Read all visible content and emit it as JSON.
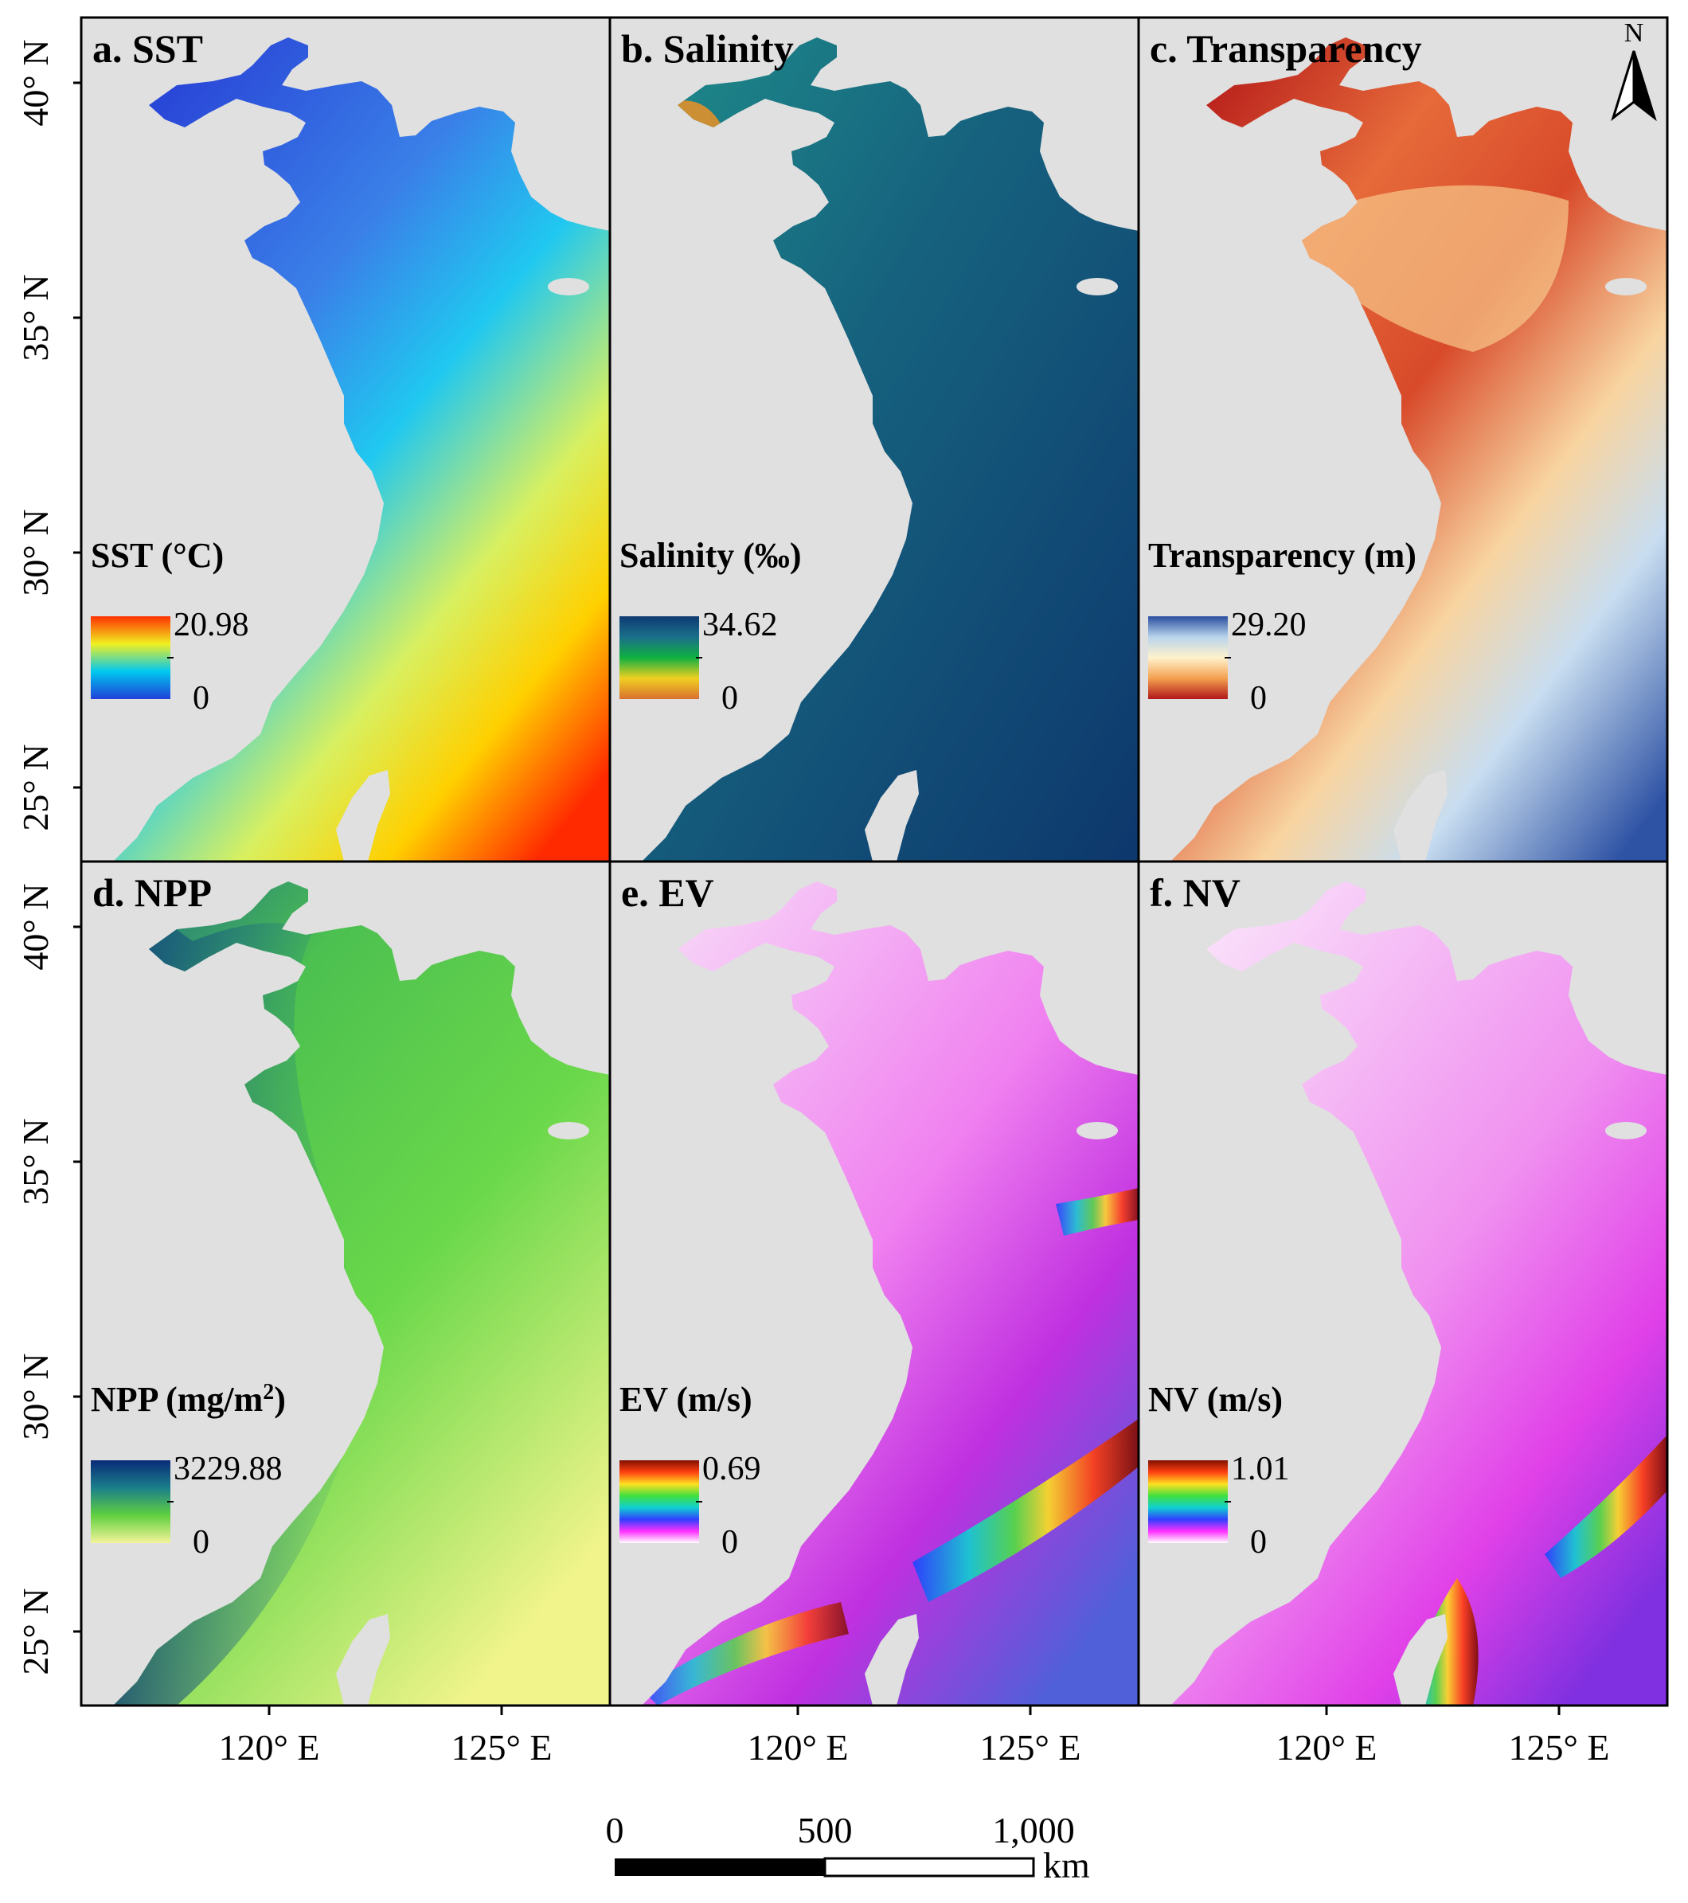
{
  "figure": {
    "panels": [
      {
        "id": "a",
        "title": "a. SST",
        "legend_title": "SST (°C)",
        "legend_title_sup": "",
        "legend_max": "20.98",
        "legend_min": "0",
        "legend_ramp": [
          "#2040d8",
          "#00c8f0",
          "#f0f020",
          "#ff3000"
        ]
      },
      {
        "id": "b",
        "title": "b. Salinity",
        "legend_title": "Salinity (‰)",
        "legend_title_sup": "",
        "legend_max": "34.62",
        "legend_min": "0",
        "legend_ramp": [
          "#d87030",
          "#f0d020",
          "#10b040",
          "#1a6f8a",
          "#0e3a72"
        ]
      },
      {
        "id": "c",
        "title": "c. Transparency",
        "legend_title": "Transparency (m)",
        "legend_title_sup": "",
        "legend_max": "29.20",
        "legend_min": "0",
        "legend_ramp": [
          "#b01818",
          "#f4a050",
          "#fff2cc",
          "#b8d4ec",
          "#2a4ea0"
        ]
      },
      {
        "id": "d",
        "title": "d. NPP",
        "legend_title": "NPP (mg/m",
        "legend_title_sup": "2",
        "legend_title_close": ")",
        "legend_max": "3229.88",
        "legend_min": "0",
        "legend_ramp": [
          "#f4f49a",
          "#60d040",
          "#1a7f8a",
          "#0a2a78"
        ]
      },
      {
        "id": "e",
        "title": "e. EV",
        "legend_title": "EV (m/s)",
        "legend_title_sup": "",
        "legend_max": "0.69",
        "legend_min": "0",
        "legend_ramp": [
          "#ffffff",
          "#ff30ff",
          "#3040ff",
          "#10d0d0",
          "#40e040",
          "#ffe020",
          "#ff4010",
          "#801000"
        ]
      },
      {
        "id": "f",
        "title": "f. NV",
        "legend_title": "NV (m/s)",
        "legend_title_sup": "",
        "legend_max": "1.01",
        "legend_min": "0",
        "legend_ramp": [
          "#ffffff",
          "#ff30ff",
          "#3040ff",
          "#10d0d0",
          "#40e040",
          "#ffe020",
          "#ff4010",
          "#801000"
        ]
      }
    ],
    "lat_labels": [
      "40° N",
      "35° N",
      "30° N",
      "25° N"
    ],
    "lon_labels": [
      "120° E",
      "125° E"
    ],
    "north_arrow": "N",
    "scalebar": {
      "ticks": [
        "0",
        "500",
        "1,000"
      ],
      "unit": "km"
    },
    "colors": {
      "land": "#e0e0e0",
      "frame": "#000000"
    }
  }
}
